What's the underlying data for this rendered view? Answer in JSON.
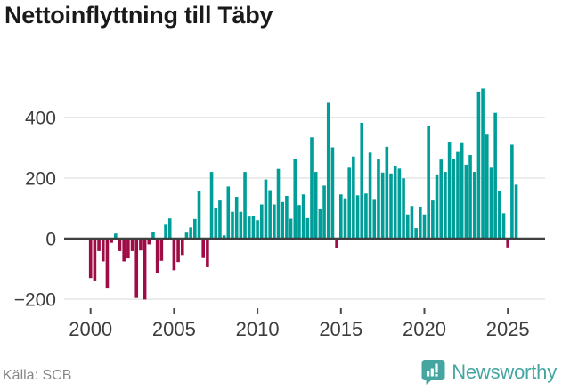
{
  "page": {
    "source_label": "Källa: SCB",
    "brand_name": "Newsworthy"
  },
  "chart_data": {
    "type": "bar",
    "title": "Nettoinflyttning till Täby",
    "subtitle": "",
    "xlabel": "",
    "ylabel": "",
    "frequency": "quarterly",
    "start_period": "2000-Q1",
    "end_period": "2025-Q3",
    "values": [
      -126,
      -134,
      -37,
      -71,
      -158,
      -10,
      17,
      -37,
      -71,
      -61,
      -37,
      -192,
      -35,
      -197,
      -15,
      23,
      -110,
      -69,
      46,
      67,
      -100,
      -73,
      -50,
      20,
      37,
      65,
      158,
      -60,
      -90,
      220,
      103,
      126,
      11,
      172,
      89,
      138,
      89,
      220,
      73,
      76,
      61,
      113,
      195,
      160,
      113,
      230,
      121,
      141,
      66,
      264,
      111,
      146,
      68,
      334,
      220,
      97,
      175,
      448,
      301,
      -27,
      146,
      133,
      234,
      271,
      143,
      382,
      149,
      284,
      131,
      264,
      218,
      303,
      215,
      241,
      231,
      199,
      80,
      108,
      35,
      106,
      80,
      372,
      126,
      212,
      261,
      220,
      320,
      264,
      286,
      318,
      244,
      276,
      220,
      485,
      495,
      343,
      234,
      415,
      156,
      84,
      -25,
      310,
      178
    ],
    "x_ticks": [
      {
        "label": "2000",
        "quarter_index": 0
      },
      {
        "label": "2005",
        "quarter_index": 20
      },
      {
        "label": "2010",
        "quarter_index": 40
      },
      {
        "label": "2015",
        "quarter_index": 60
      },
      {
        "label": "2020",
        "quarter_index": 80
      },
      {
        "label": "2025",
        "quarter_index": 100
      }
    ],
    "y_ticks": [
      {
        "label": "400",
        "value": 400
      },
      {
        "label": "200",
        "value": 200
      },
      {
        "label": "0",
        "value": 0
      },
      {
        "label": "−200",
        "value": -200
      }
    ],
    "ylim": [
      -220,
      510
    ],
    "grid": "horizontal",
    "legend": "none",
    "positive_color": "#009e98",
    "negative_color": "#9e0b45",
    "zero_line_color": "#3f3f3f",
    "grid_color": "#e7e7e7",
    "axis_text_color": "#3d3d3d",
    "brand_color": "#45a6a1"
  }
}
